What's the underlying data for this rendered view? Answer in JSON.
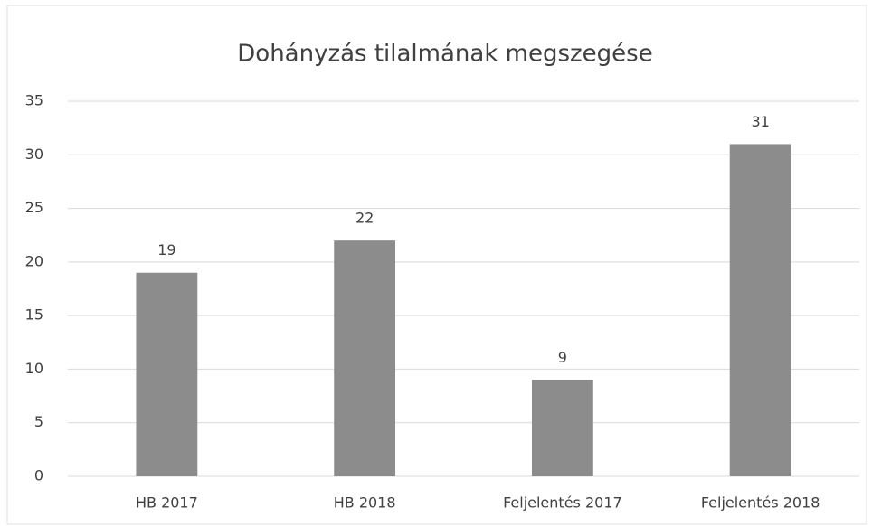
{
  "chart_data": {
    "type": "bar",
    "title": "Dohányzás tilalmának megszegése",
    "categories": [
      "HB 2017",
      "HB 2018",
      "Feljelentés 2017",
      "Feljelentés 2018"
    ],
    "values": [
      19,
      22,
      9,
      31
    ],
    "color": "#8c8c8c",
    "ylim": [
      0,
      35
    ],
    "yticks": [
      0,
      5,
      10,
      15,
      20,
      25,
      30,
      35
    ],
    "grid": true
  }
}
